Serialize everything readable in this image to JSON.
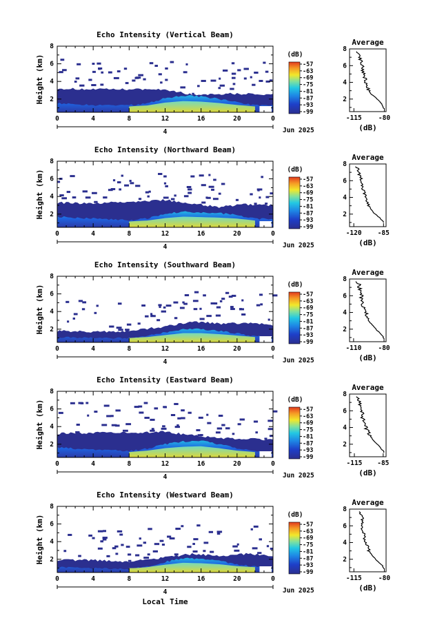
{
  "figure": {
    "xlabel": "Local Time",
    "day_label": "4",
    "month_label": "Jun 2025",
    "ylabel": "Height (km)",
    "avg_title": "Average",
    "avg_xlabel": "(dB)",
    "colorbar_unit": "(dB)",
    "colorbar_ticks": [
      "-57",
      "-63",
      "-69",
      "-75",
      "-81",
      "-87",
      "-93",
      "-99"
    ],
    "colors": {
      "low": "#2b2f8f",
      "mid_low": "#1e63e0",
      "mid": "#23b7e3",
      "mid_high": "#f2e82a",
      "high": "#e23a1f",
      "no_data": "#ffffff"
    }
  },
  "chart_data": [
    {
      "type": "heatmap",
      "title": "Echo Intensity (Vertical Beam)",
      "xlabel": "Local Time",
      "ylabel": "Height (km)",
      "x_ticks": [
        "0",
        "4",
        "8",
        "12",
        "16",
        "20",
        "0"
      ],
      "y_ticks": [
        "2",
        "4",
        "6",
        "8"
      ],
      "xlim": [
        0,
        24
      ],
      "ylim": [
        0.5,
        8
      ],
      "colorbar": {
        "unit": "dB",
        "range": [
          -99,
          -57
        ]
      },
      "echo_top_km": [
        [
          0,
          3.2
        ],
        [
          4,
          3.1
        ],
        [
          8,
          3.1
        ],
        [
          12,
          3.1
        ],
        [
          15,
          2.5
        ],
        [
          18,
          2.6
        ],
        [
          21,
          2.6
        ],
        [
          24,
          2.5
        ]
      ],
      "boundary_layer_top_km": [
        [
          0,
          1.5
        ],
        [
          4,
          1.3
        ],
        [
          8,
          1.3
        ],
        [
          10,
          1.5
        ],
        [
          12,
          2.1
        ],
        [
          14,
          2.4
        ],
        [
          16,
          2.3
        ],
        [
          18,
          2.0
        ],
        [
          20,
          1.6
        ],
        [
          22,
          1.3
        ],
        [
          24,
          1.3
        ]
      ],
      "average_profile": {
        "title": "Average",
        "xlabel": "(dB)",
        "x_ticks": [
          "-115",
          "-80"
        ],
        "y_ticks": [
          "2",
          "4",
          "6",
          "8"
        ],
        "xlim": [
          -120,
          -78
        ],
        "ylim": [
          0.5,
          8
        ],
        "x": [
          -110,
          -108,
          -106,
          -105,
          -103,
          -101,
          -99,
          -97,
          -95,
          -90,
          -85,
          -82,
          -80
        ],
        "y": [
          7.7,
          7.0,
          6.3,
          5.5,
          4.8,
          4.0,
          3.4,
          2.9,
          2.6,
          2.2,
          1.7,
          1.2,
          0.8
        ]
      }
    },
    {
      "type": "heatmap",
      "title": "Echo Intensity (Northward Beam)",
      "xlabel": "Local Time",
      "ylabel": "Height (km)",
      "x_ticks": [
        "0",
        "4",
        "8",
        "12",
        "16",
        "20",
        "0"
      ],
      "y_ticks": [
        "2",
        "4",
        "6",
        "8"
      ],
      "xlim": [
        0,
        24
      ],
      "ylim": [
        0.5,
        8
      ],
      "colorbar": {
        "unit": "dB",
        "range": [
          -99,
          -57
        ]
      },
      "echo_top_km": [
        [
          0,
          3.3
        ],
        [
          4,
          3.2
        ],
        [
          8,
          3.4
        ],
        [
          12,
          3.6
        ],
        [
          15,
          3.2
        ],
        [
          18,
          2.8
        ],
        [
          21,
          3.1
        ],
        [
          24,
          3.0
        ]
      ],
      "boundary_layer_top_km": [
        [
          0,
          1.7
        ],
        [
          4,
          1.5
        ],
        [
          8,
          1.3
        ],
        [
          10,
          1.5
        ],
        [
          12,
          2.0
        ],
        [
          14,
          2.3
        ],
        [
          16,
          2.2
        ],
        [
          18,
          2.1
        ],
        [
          20,
          1.9
        ],
        [
          22,
          1.5
        ],
        [
          24,
          1.4
        ]
      ],
      "average_profile": {
        "title": "Average",
        "xlabel": "(dB)",
        "x_ticks": [
          "-120",
          "-85"
        ],
        "y_ticks": [
          "2",
          "4",
          "6",
          "8"
        ],
        "xlim": [
          -125,
          -82
        ],
        "ylim": [
          0.5,
          8
        ],
        "x": [
          -116,
          -114,
          -112,
          -110,
          -109,
          -107,
          -106,
          -103,
          -100,
          -96,
          -90,
          -86,
          -84
        ],
        "y": [
          7.7,
          7.0,
          6.3,
          5.5,
          4.9,
          4.3,
          3.8,
          3.2,
          2.6,
          2.1,
          1.6,
          1.2,
          0.9
        ]
      }
    },
    {
      "type": "heatmap",
      "title": "Echo Intensity (Southward Beam)",
      "xlabel": "Local Time",
      "ylabel": "Height (km)",
      "x_ticks": [
        "0",
        "4",
        "8",
        "12",
        "16",
        "20",
        "0"
      ],
      "y_ticks": [
        "2",
        "4",
        "6",
        "8"
      ],
      "xlim": [
        0,
        24
      ],
      "ylim": [
        0.5,
        8
      ],
      "colorbar": {
        "unit": "dB",
        "range": [
          -99,
          -57
        ]
      },
      "echo_top_km": [
        [
          0,
          1.8
        ],
        [
          4,
          1.7
        ],
        [
          8,
          1.8
        ],
        [
          12,
          2.3
        ],
        [
          15,
          2.9
        ],
        [
          18,
          2.6
        ],
        [
          21,
          2.7
        ],
        [
          24,
          2.5
        ]
      ],
      "boundary_layer_top_km": [
        [
          0,
          1.1
        ],
        [
          4,
          1.0
        ],
        [
          8,
          1.0
        ],
        [
          10,
          1.2
        ],
        [
          12,
          1.6
        ],
        [
          14,
          2.0
        ],
        [
          16,
          2.0
        ],
        [
          18,
          1.8
        ],
        [
          20,
          1.5
        ],
        [
          22,
          1.2
        ],
        [
          24,
          1.1
        ]
      ],
      "average_profile": {
        "title": "Average",
        "xlabel": "(dB)",
        "x_ticks": [
          "-110",
          "-80"
        ],
        "y_ticks": [
          "2",
          "4",
          "6",
          "8"
        ],
        "xlim": [
          -114,
          -78
        ],
        "ylim": [
          0.5,
          8
        ],
        "x": [
          -106,
          -104,
          -103,
          -102,
          -101,
          -99,
          -97,
          -95,
          -92,
          -88,
          -84,
          -81,
          -80
        ],
        "y": [
          7.7,
          7.0,
          6.3,
          5.6,
          5.0,
          4.3,
          3.6,
          3.0,
          2.5,
          2.0,
          1.5,
          1.1,
          0.8
        ]
      }
    },
    {
      "type": "heatmap",
      "title": "Echo Intensity (Eastward Beam)",
      "xlabel": "Local Time",
      "ylabel": "Height (km)",
      "x_ticks": [
        "0",
        "4",
        "8",
        "12",
        "16",
        "20",
        "0"
      ],
      "y_ticks": [
        "2",
        "4",
        "6",
        "8"
      ],
      "xlim": [
        0,
        24
      ],
      "ylim": [
        0.5,
        8
      ],
      "colorbar": {
        "unit": "dB",
        "range": [
          -99,
          -57
        ]
      },
      "echo_top_km": [
        [
          0,
          3.2
        ],
        [
          4,
          3.3
        ],
        [
          8,
          3.3
        ],
        [
          12,
          3.4
        ],
        [
          15,
          3.0
        ],
        [
          18,
          2.7
        ],
        [
          21,
          2.6
        ],
        [
          24,
          2.5
        ]
      ],
      "boundary_layer_top_km": [
        [
          0,
          1.6
        ],
        [
          4,
          1.4
        ],
        [
          8,
          1.2
        ],
        [
          10,
          1.5
        ],
        [
          12,
          2.0
        ],
        [
          14,
          2.3
        ],
        [
          16,
          2.4
        ],
        [
          18,
          2.0
        ],
        [
          20,
          1.5
        ],
        [
          22,
          1.2
        ],
        [
          24,
          1.1
        ]
      ],
      "average_profile": {
        "title": "Average",
        "xlabel": "(dB)",
        "x_ticks": [
          "-115",
          "-85"
        ],
        "y_ticks": [
          "2",
          "4",
          "6",
          "8"
        ],
        "xlim": [
          -120,
          -82
        ],
        "ylim": [
          0.5,
          8
        ],
        "x": [
          -111,
          -110,
          -108,
          -107,
          -106,
          -104,
          -102,
          -99,
          -96,
          -92,
          -88,
          -85,
          -84
        ],
        "y": [
          7.7,
          7.0,
          6.3,
          5.6,
          5.0,
          4.3,
          3.7,
          3.1,
          2.6,
          2.1,
          1.6,
          1.2,
          0.9
        ]
      }
    },
    {
      "type": "heatmap",
      "title": "Echo Intensity (Westward Beam)",
      "xlabel": "Local Time",
      "ylabel": "Height (km)",
      "x_ticks": [
        "0",
        "4",
        "8",
        "12",
        "16",
        "20",
        "0"
      ],
      "y_ticks": [
        "2",
        "4",
        "6",
        "8"
      ],
      "xlim": [
        0,
        24
      ],
      "ylim": [
        0.5,
        8
      ],
      "colorbar": {
        "unit": "dB",
        "range": [
          -99,
          -57
        ]
      },
      "echo_top_km": [
        [
          0,
          1.9
        ],
        [
          4,
          1.9
        ],
        [
          8,
          1.7
        ],
        [
          12,
          2.2
        ],
        [
          15,
          2.6
        ],
        [
          18,
          2.4
        ],
        [
          21,
          2.6
        ],
        [
          24,
          2.4
        ]
      ],
      "boundary_layer_top_km": [
        [
          0,
          1.1
        ],
        [
          4,
          1.0
        ],
        [
          8,
          0.9
        ],
        [
          10,
          1.2
        ],
        [
          12,
          1.7
        ],
        [
          14,
          2.1
        ],
        [
          16,
          2.0
        ],
        [
          18,
          1.8
        ],
        [
          20,
          1.4
        ],
        [
          22,
          1.2
        ],
        [
          24,
          1.0
        ]
      ],
      "average_profile": {
        "title": "Average",
        "xlabel": "(dB)",
        "x_ticks": [
          "-115",
          "-80"
        ],
        "y_ticks": [
          "2",
          "4",
          "6",
          "8"
        ],
        "xlim": [
          -120,
          -78
        ],
        "ylim": [
          0.5,
          8
        ],
        "x": [
          -107,
          -106,
          -105,
          -106,
          -104,
          -102,
          -100,
          -98,
          -95,
          -91,
          -86,
          -82,
          -80
        ],
        "y": [
          7.7,
          7.0,
          6.4,
          5.8,
          5.1,
          4.4,
          3.7,
          3.1,
          2.6,
          2.1,
          1.6,
          1.2,
          0.8
        ]
      }
    }
  ]
}
